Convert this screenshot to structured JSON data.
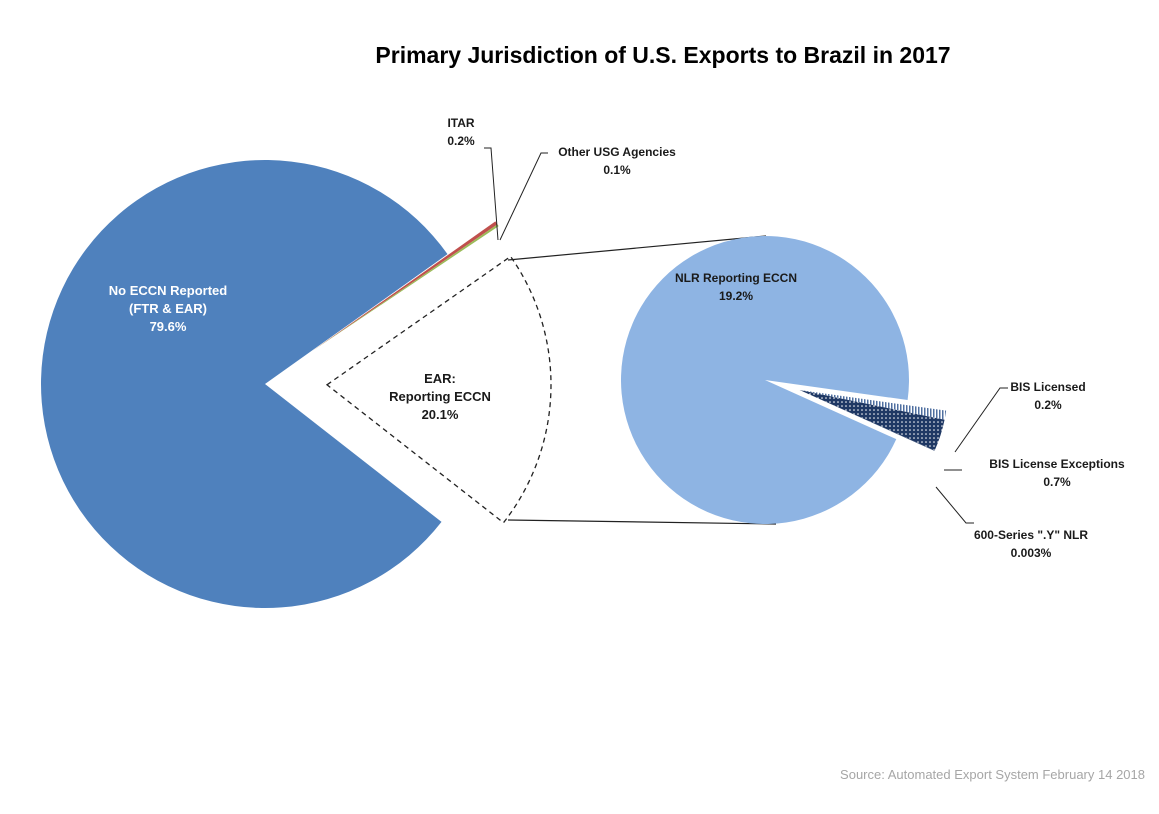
{
  "chart_data": {
    "type": "pie",
    "title": "Primary Jurisdiction of U.S. Exports to Brazil in 2017",
    "source": "Source: Automated Export System February 14 2018",
    "main_pie": {
      "slices": [
        {
          "name": "No ECCN Reported",
          "name2": "(FTR & EAR)",
          "value_label": "79.6%",
          "value": 79.6,
          "color": "#4f81bd"
        },
        {
          "name": "EAR:",
          "name2": "Reporting ECCN",
          "value_label": "20.1%",
          "value": 20.1,
          "color": "#ffffff"
        },
        {
          "name": "ITAR",
          "value_label": "0.2%",
          "value": 0.2,
          "color": "#c0504d"
        },
        {
          "name": "Other USG Agencies",
          "value_label": "0.1%",
          "value": 0.1,
          "color": "#9bbb59"
        }
      ]
    },
    "sub_pie": {
      "slices": [
        {
          "name": "NLR Reporting ECCN",
          "value_label": "19.2%",
          "value": 19.2,
          "color": "#8eb4e3"
        },
        {
          "name": "BIS Licensed",
          "value_label": "0.2%",
          "value": 0.2,
          "color": "#c6d9f1"
        },
        {
          "name": "BIS License Exceptions",
          "value_label": "0.7%",
          "value": 0.7,
          "color": "#1f3864"
        },
        {
          "name": "600-Series \".Y\" NLR",
          "value_label": "0.003%",
          "value": 0.003,
          "color": "#1f3864"
        }
      ]
    }
  }
}
